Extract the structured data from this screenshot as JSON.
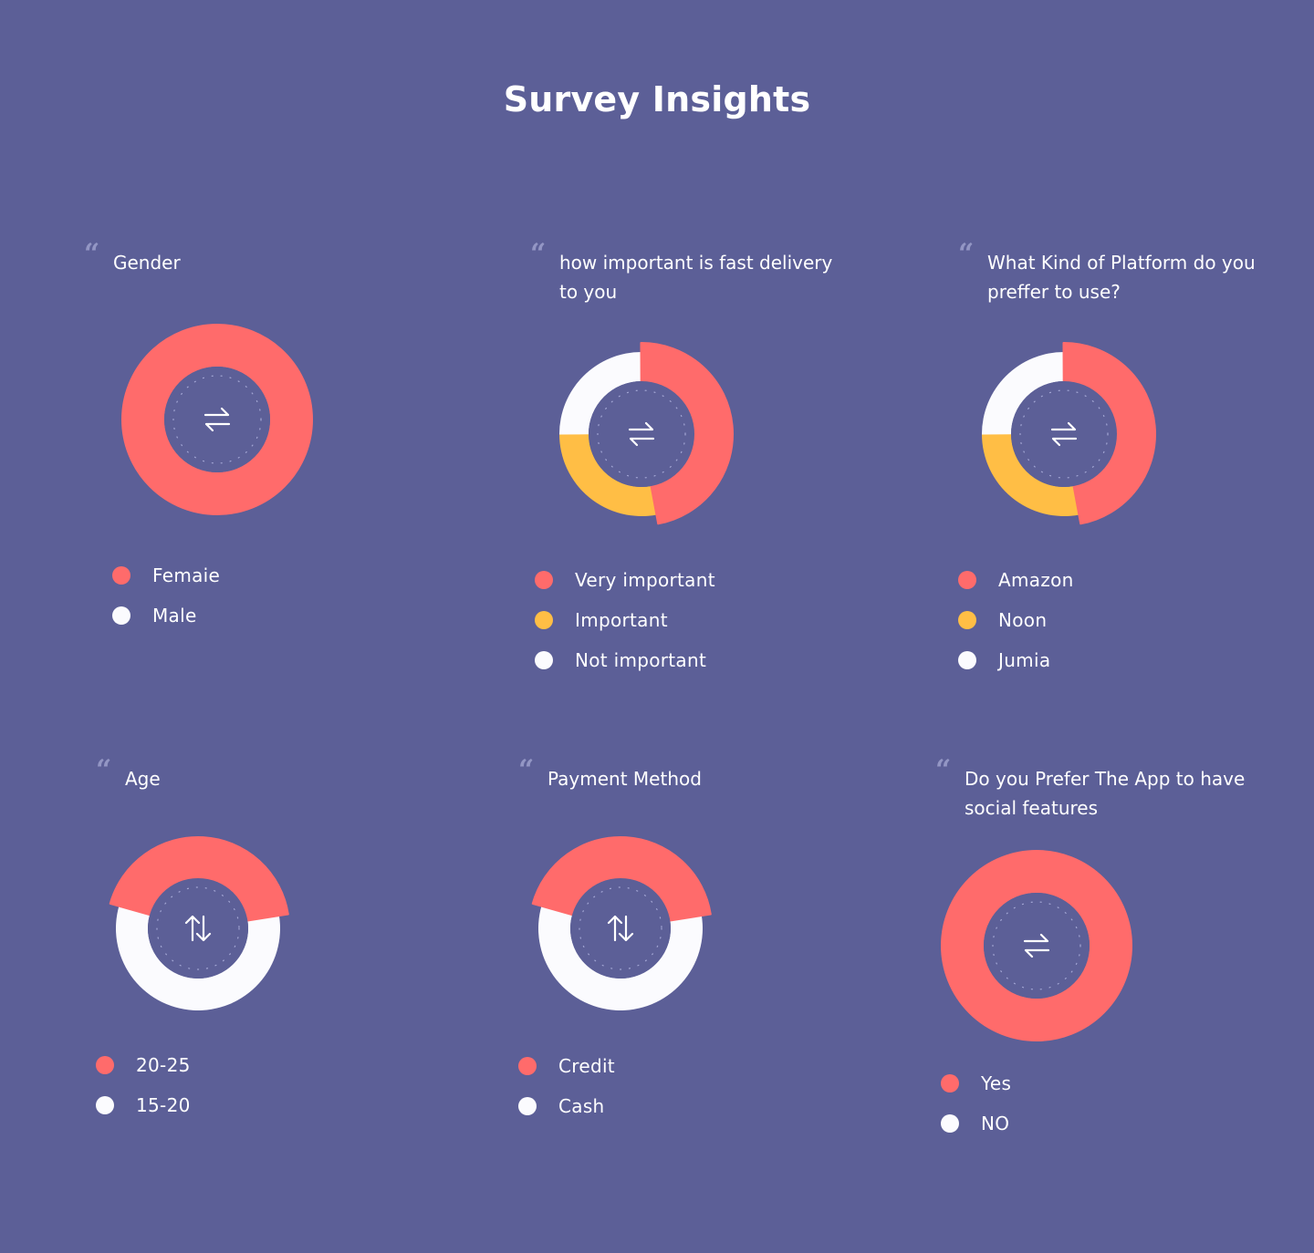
{
  "page": {
    "title": "Survey Insights"
  },
  "colors": {
    "background": "#5c5f97",
    "center": "#5c5f97",
    "red": "#ff6b6b",
    "yellow": "#ffbe45",
    "white": "#fbfbfe"
  },
  "chart_data": [
    {
      "type": "pie",
      "title": "Gender",
      "center_icon": "swap-horizontal-icon",
      "categories": [
        "Femaie",
        "Male"
      ],
      "values": [
        100,
        0
      ],
      "colors": [
        "#ff6b6b",
        "#fbfbfe"
      ]
    },
    {
      "type": "pie",
      "title": "how important is fast delivery to you",
      "center_icon": "swap-horizontal-icon",
      "categories": [
        "Very important",
        "Important",
        "Not important"
      ],
      "values": [
        47,
        28,
        25
      ],
      "colors": [
        "#ff6b6b",
        "#ffbe45",
        "#fbfbfe"
      ]
    },
    {
      "type": "pie",
      "title": "What Kind of Platform do you preffer to use?",
      "center_icon": "swap-horizontal-icon",
      "categories": [
        "Amazon",
        "Noon",
        "Jumia"
      ],
      "values": [
        47,
        28,
        25
      ],
      "colors": [
        "#ff6b6b",
        "#ffbe45",
        "#fbfbfe"
      ]
    },
    {
      "type": "pie",
      "title": "Age",
      "center_icon": "swap-vertical-icon",
      "categories": [
        "20-25",
        "15-20"
      ],
      "values": [
        43,
        57
      ],
      "colors": [
        "#ff6b6b",
        "#fbfbfe"
      ]
    },
    {
      "type": "pie",
      "title": "Payment Method",
      "center_icon": "swap-vertical-icon",
      "categories": [
        "Credit",
        "Cash"
      ],
      "values": [
        43,
        57
      ],
      "colors": [
        "#ff6b6b",
        "#fbfbfe"
      ]
    },
    {
      "type": "pie",
      "title": "Do you Prefer The App to have social features",
      "center_icon": "swap-horizontal-icon",
      "categories": [
        "Yes",
        "NO"
      ],
      "values": [
        100,
        0
      ],
      "colors": [
        "#ff6b6b",
        "#fbfbfe"
      ]
    }
  ]
}
